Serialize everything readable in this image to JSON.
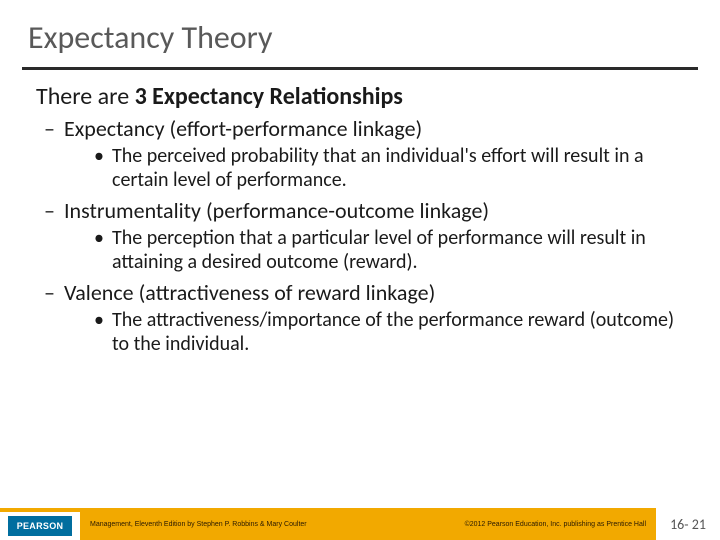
{
  "title": "Expectancy Theory",
  "lead_prefix": "There are ",
  "lead_bold": "3 Expectancy Relationships",
  "items": [
    {
      "heading": "Expectancy (effort-performance linkage)",
      "bullet": "The perceived probability that an individual's effort will result in a certain level of performance."
    },
    {
      "heading": "Instrumentality (performance-outcome linkage)",
      "bullet": "The perception that a particular level of performance will result in attaining a desired outcome (reward)."
    },
    {
      "heading": "Valence (attractiveness of reward linkage)",
      "bullet": "The attractiveness/importance of the performance reward (outcome) to the individual."
    }
  ],
  "footer": {
    "logo_text": "PEARSON",
    "book_credit": "Management, Eleventh Edition by Stephen P. Robbins & Mary Coulter",
    "copyright": "©2012 Pearson Education, Inc. publishing as Prentice Hall",
    "page": "16- 21"
  },
  "colors": {
    "title_color": "#595959",
    "rule_color": "#2a2a2a",
    "text_color": "#1a1a1a",
    "accent_gold": "#f2a900",
    "pearson_blue": "#006e9f",
    "background": "#ffffff"
  },
  "typography": {
    "title_fontsize": 32,
    "lead_fontsize": 24,
    "level1_fontsize": 22,
    "level2_fontsize": 20,
    "footer_fontsize": 7,
    "page_fontsize": 14
  }
}
